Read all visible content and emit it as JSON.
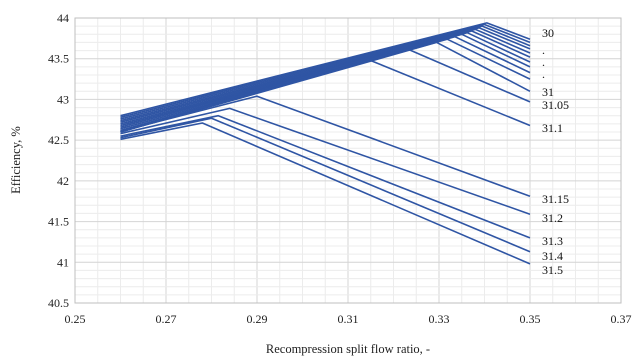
{
  "chart_data": {
    "type": "line",
    "title": "",
    "xlabel": "Recompression split flow ratio,  -",
    "ylabel": "Efficiency, %",
    "xlim": [
      0.25,
      0.37
    ],
    "ylim": [
      40.5,
      44
    ],
    "xticks": [
      "0.25",
      "0.27",
      "0.29",
      "0.31",
      "0.33",
      "0.35",
      "0.37"
    ],
    "yticks": [
      "40.5",
      "41",
      "41.5",
      "42",
      "42.5",
      "43",
      "43.5",
      "44"
    ],
    "grid": true,
    "legend": "none",
    "color": "#2f55a4",
    "series_labels": [
      "30",
      ".",
      ".",
      ".",
      "31",
      "31.05",
      "31.1",
      "31.15",
      "31.2",
      "31.3",
      "31.4",
      "31.5"
    ],
    "series": [
      {
        "name": "30",
        "x": [
          0.26,
          0.3405,
          0.35
        ],
        "y": [
          42.8,
          43.94,
          43.74
        ]
      },
      {
        "name": "",
        "x": [
          0.26,
          0.34,
          0.35
        ],
        "y": [
          42.78,
          43.92,
          43.7
        ]
      },
      {
        "name": "",
        "x": [
          0.26,
          0.3395,
          0.35
        ],
        "y": [
          42.76,
          43.9,
          43.66
        ]
      },
      {
        "name": "",
        "x": [
          0.26,
          0.3388,
          0.35
        ],
        "y": [
          42.74,
          43.88,
          43.62
        ]
      },
      {
        "name": "",
        "x": [
          0.26,
          0.338,
          0.35
        ],
        "y": [
          42.72,
          43.86,
          43.57
        ]
      },
      {
        "name": "",
        "x": [
          0.26,
          0.3372,
          0.35
        ],
        "y": [
          42.7,
          43.84,
          43.52
        ]
      },
      {
        "name": "",
        "x": [
          0.26,
          0.3362,
          0.35
        ],
        "y": [
          42.68,
          43.82,
          43.46
        ]
      },
      {
        "name": "",
        "x": [
          0.26,
          0.335,
          0.35
        ],
        "y": [
          42.66,
          43.8,
          43.4
        ]
      },
      {
        "name": "",
        "x": [
          0.26,
          0.3335,
          0.35
        ],
        "y": [
          42.64,
          43.77,
          43.33
        ]
      },
      {
        "name": "",
        "x": [
          0.26,
          0.3318,
          0.35
        ],
        "y": [
          42.62,
          43.74,
          43.25
        ]
      },
      {
        "name": "31",
        "x": [
          0.26,
          0.3295,
          0.35
        ],
        "y": [
          42.6,
          43.7,
          43.1
        ]
      },
      {
        "name": "31.05",
        "x": [
          0.26,
          0.323,
          0.35
        ],
        "y": [
          42.6,
          43.62,
          42.97
        ]
      },
      {
        "name": "31.1",
        "x": [
          0.26,
          0.314,
          0.35
        ],
        "y": [
          42.6,
          43.5,
          42.68
        ]
      },
      {
        "name": "31.15",
        "x": [
          0.26,
          0.29,
          0.35
        ],
        "y": [
          42.61,
          43.04,
          41.81
        ]
      },
      {
        "name": "31.2",
        "x": [
          0.26,
          0.284,
          0.35
        ],
        "y": [
          42.58,
          42.89,
          41.59
        ]
      },
      {
        "name": "31.3",
        "x": [
          0.26,
          0.2815,
          0.35
        ],
        "y": [
          42.55,
          42.8,
          41.3
        ]
      },
      {
        "name": "31.4",
        "x": [
          0.26,
          0.28,
          0.35
        ],
        "y": [
          42.53,
          42.77,
          41.13
        ]
      },
      {
        "name": "31.5",
        "x": [
          0.26,
          0.278,
          0.35
        ],
        "y": [
          42.51,
          42.71,
          40.98
        ]
      }
    ]
  }
}
